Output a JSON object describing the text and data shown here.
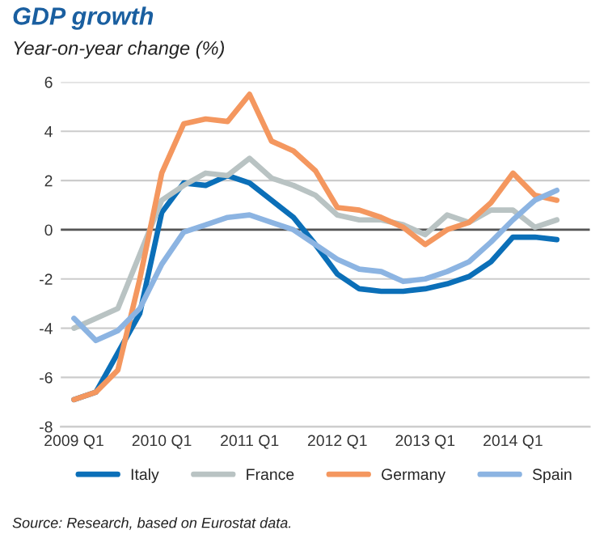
{
  "chart_data": {
    "type": "line",
    "title": "GDP growth",
    "subtitle": "Year-on-year change (%)",
    "categories": [
      "2009 Q1",
      null,
      null,
      null,
      "2010 Q1",
      null,
      null,
      null,
      "2011 Q1",
      null,
      null,
      null,
      "2012 Q1",
      null,
      null,
      null,
      "2013 Q1",
      null,
      null,
      null,
      "2014 Q1",
      null,
      null
    ],
    "series": [
      {
        "name": "Italy",
        "color": "#0b6fb8",
        "values": [
          -6.9,
          -6.6,
          -5.0,
          -3.4,
          0.7,
          1.9,
          1.8,
          2.2,
          1.9,
          1.2,
          0.5,
          -0.6,
          -1.8,
          -2.4,
          -2.5,
          -2.5,
          -2.4,
          -2.2,
          -1.9,
          -1.3,
          -0.3,
          -0.3,
          -0.4
        ]
      },
      {
        "name": "France",
        "color": "#b9c3c3",
        "values": [
          -4.0,
          -3.6,
          -3.2,
          -1.0,
          1.2,
          1.8,
          2.3,
          2.2,
          2.9,
          2.1,
          1.8,
          1.4,
          0.6,
          0.4,
          0.4,
          0.2,
          -0.2,
          0.6,
          0.3,
          0.8,
          0.8,
          0.1,
          0.4
        ]
      },
      {
        "name": "Germany",
        "color": "#f4975f",
        "values": [
          -6.9,
          -6.6,
          -5.7,
          -2.0,
          2.3,
          4.3,
          4.5,
          4.4,
          5.5,
          3.6,
          3.2,
          2.4,
          0.9,
          0.8,
          0.5,
          0.1,
          -0.6,
          0.0,
          0.3,
          1.1,
          2.3,
          1.4,
          1.2
        ]
      },
      {
        "name": "Spain",
        "color": "#8cb4e2",
        "values": [
          -3.6,
          -4.5,
          -4.1,
          -3.2,
          -1.4,
          -0.1,
          0.2,
          0.5,
          0.6,
          0.3,
          0.0,
          -0.6,
          -1.2,
          -1.6,
          -1.7,
          -2.1,
          -2.0,
          -1.7,
          -1.3,
          -0.5,
          0.4,
          1.2,
          1.6
        ]
      }
    ],
    "ylim": [
      -8,
      6
    ],
    "yticks": [
      -8,
      -6,
      -4,
      -2,
      0,
      2,
      4,
      6
    ],
    "ref_lines": [
      {
        "axis": "y",
        "value": 0,
        "color": "#555555"
      }
    ],
    "grid": "y",
    "legend": "bottom",
    "marker": "none",
    "line_style": "solid",
    "annotations": [
      "Source: Research, based on Eurostat data."
    ]
  }
}
